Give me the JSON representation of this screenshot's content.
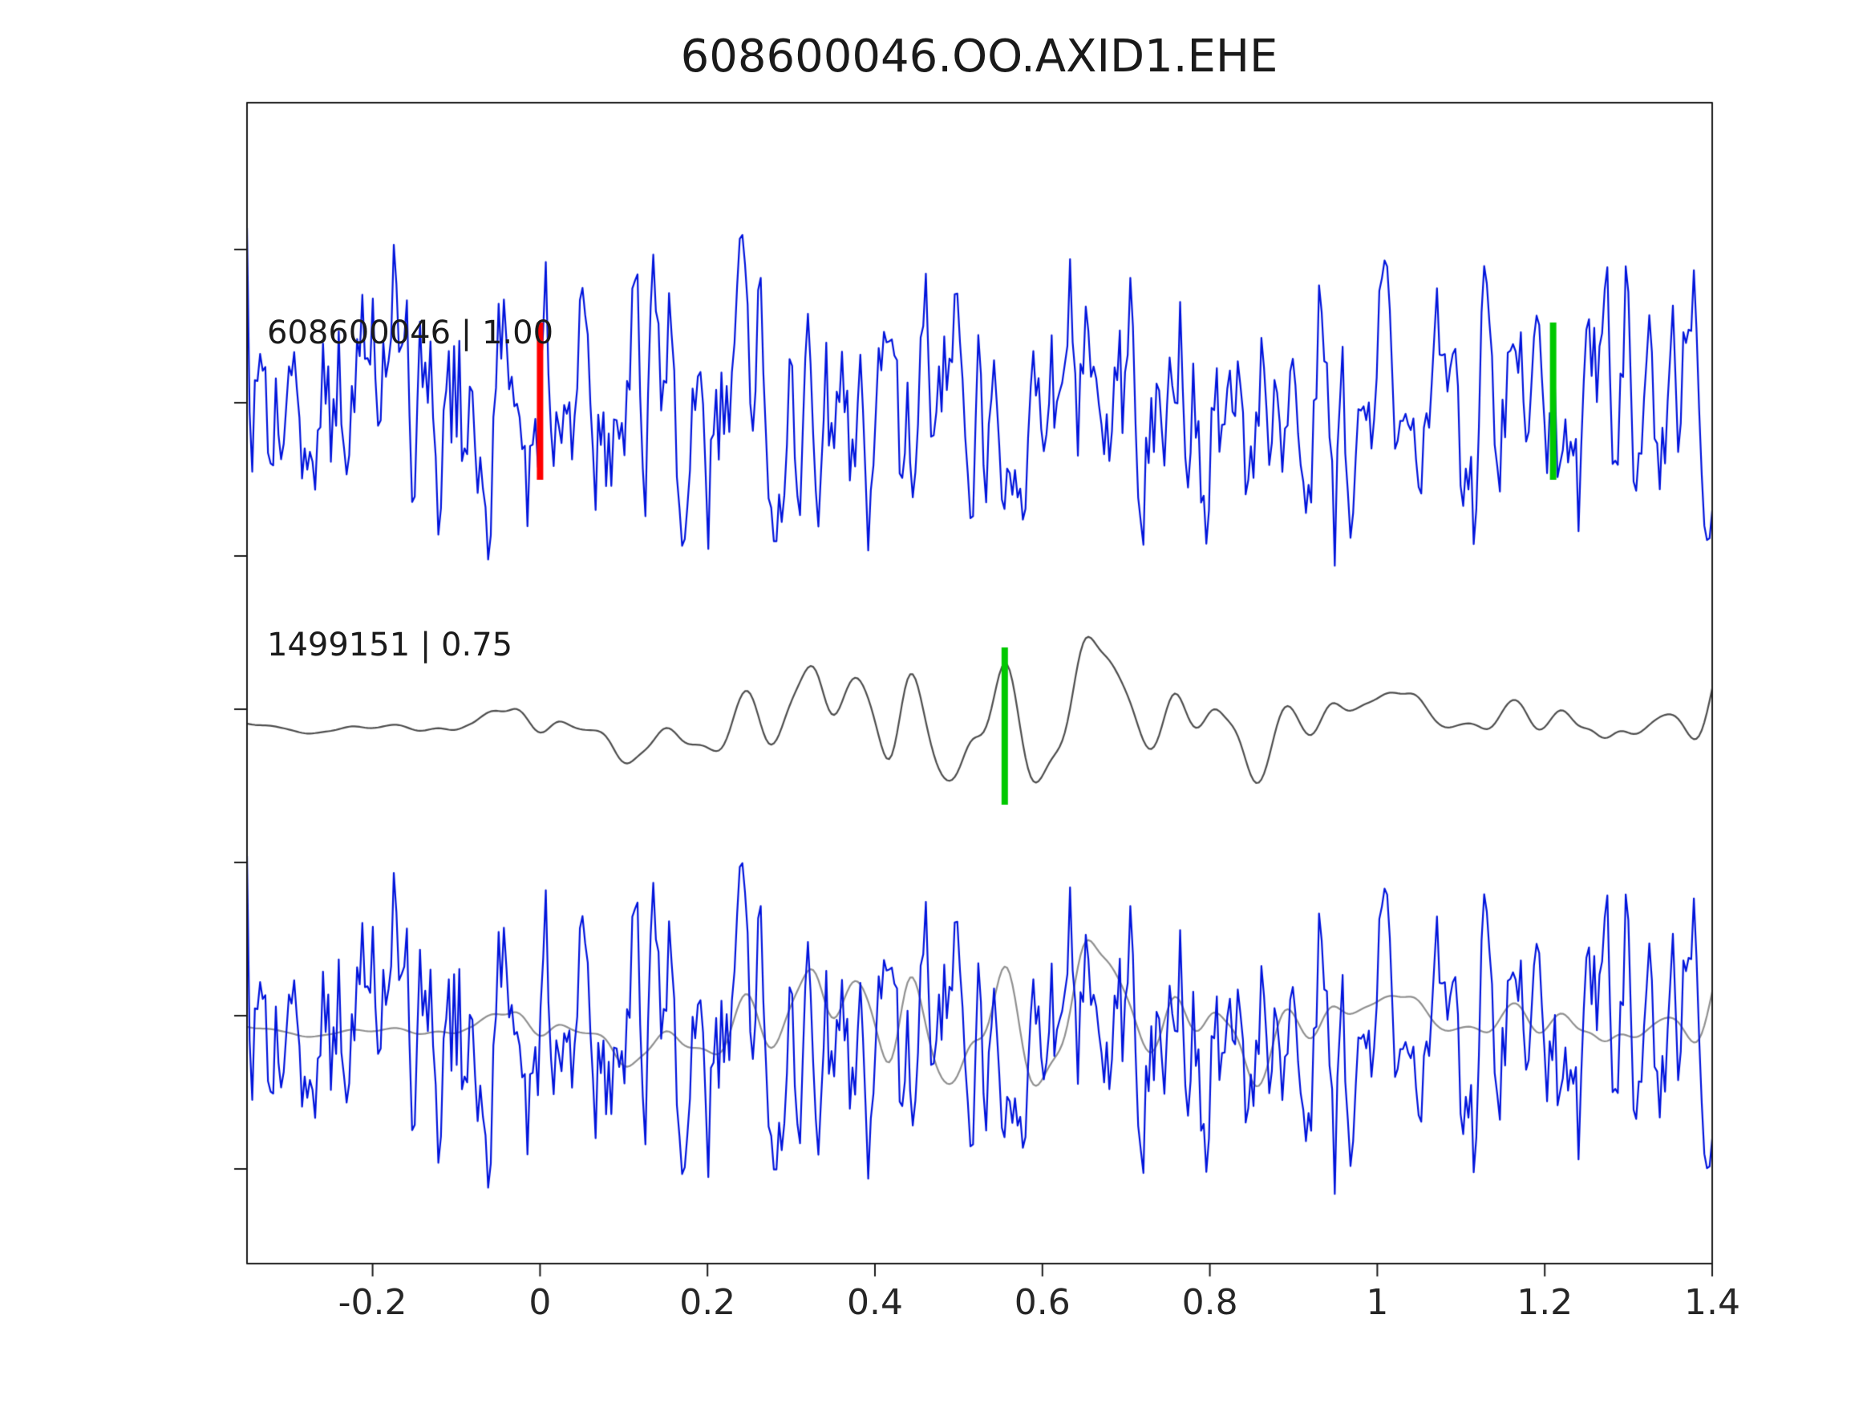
{
  "page": {
    "title": "608600046.OO.AXID1.EHE"
  },
  "traces": {
    "trace1_label": "608600046 | 1.00",
    "trace2_label": "1499151 | 0.75"
  },
  "axes": {
    "x_range": [
      -0.35,
      1.4
    ],
    "x_tick_values": [
      -0.2,
      0,
      0.2,
      0.4,
      0.6,
      0.8,
      1,
      1.2,
      1.4
    ],
    "x_tick_labels": [
      "-0.2",
      "0",
      "0.2",
      "0.4",
      "0.6",
      "0.8",
      "1",
      "1.2",
      "1.4"
    ]
  },
  "chart_data": {
    "type": "line",
    "title": "608600046.OO.AXID1.EHE",
    "xlabel": "",
    "ylabel": "",
    "xlim": [
      -0.35,
      1.4
    ],
    "x_ticks": [
      -0.2,
      0,
      0.2,
      0.4,
      0.6,
      0.8,
      1,
      1.2,
      1.4
    ],
    "x_tick_labels": [
      "-0.2",
      "0",
      "0.2",
      "0.4",
      "0.6",
      "0.8",
      "1",
      "1.2",
      "1.4"
    ],
    "grid": false,
    "legend_position": "in-plot text labels",
    "rows": [
      {
        "row": 1,
        "label": "608600046 | 1.00",
        "color": "#0014dc",
        "description": "detection waveform, blue high-frequency noisy trace"
      },
      {
        "row": 2,
        "label": "1499151 | 0.75",
        "color": "#4d4d4d",
        "description": "template waveform, gray emergent wave packet peaking near x=0.6"
      },
      {
        "row": 3,
        "label": "",
        "description": "overlay of detection (blue) and template (gray) traces"
      }
    ],
    "markers": [
      {
        "row": 1,
        "x": 0.0,
        "color": "#ff0000"
      },
      {
        "row": 1,
        "x": 1.21,
        "color": "#00c800"
      },
      {
        "row": 2,
        "x": 0.555,
        "color": "#00c800"
      }
    ],
    "series": [
      {
        "name": "overlay-template-gray",
        "row": 3,
        "color": "#909090",
        "kind": "wavepacket",
        "seed": 13,
        "points": 560,
        "smooth": 25,
        "amplitude": 1.0,
        "envelope": [
          [
            -0.35,
            0.07
          ],
          [
            -0.08,
            0.08
          ],
          [
            -0.03,
            0.3
          ],
          [
            0.1,
            0.45
          ],
          [
            0.17,
            0.62
          ],
          [
            0.28,
            0.5
          ],
          [
            0.4,
            0.82
          ],
          [
            0.55,
            1.0
          ],
          [
            0.68,
            0.95
          ],
          [
            0.8,
            0.85
          ],
          [
            0.9,
            0.55
          ],
          [
            1.0,
            0.4
          ],
          [
            1.15,
            0.3
          ],
          [
            1.4,
            0.24
          ]
        ]
      },
      {
        "name": "overlay-detection-blue",
        "row": 3,
        "color": "#0014dc",
        "kind": "noisy",
        "seed": 7,
        "points": 560,
        "smooth": 1,
        "amplitude": 1.0
      },
      {
        "name": "608600046 | 1.00",
        "row": 1,
        "color": "#0014dc",
        "kind": "noisy",
        "seed": 7,
        "points": 560,
        "smooth": 1,
        "amplitude": 1.0
      },
      {
        "name": "1499151 | 0.75",
        "row": 2,
        "color": "#4d4d4d",
        "kind": "wavepacket",
        "seed": 13,
        "points": 560,
        "smooth": 25,
        "amplitude": 1.0,
        "envelope": [
          [
            -0.35,
            0.07
          ],
          [
            -0.08,
            0.08
          ],
          [
            -0.03,
            0.3
          ],
          [
            0.1,
            0.45
          ],
          [
            0.17,
            0.62
          ],
          [
            0.28,
            0.5
          ],
          [
            0.4,
            0.82
          ],
          [
            0.55,
            1.0
          ],
          [
            0.68,
            0.95
          ],
          [
            0.8,
            0.85
          ],
          [
            0.9,
            0.55
          ],
          [
            1.0,
            0.4
          ],
          [
            1.15,
            0.3
          ],
          [
            1.4,
            0.24
          ]
        ]
      }
    ]
  }
}
